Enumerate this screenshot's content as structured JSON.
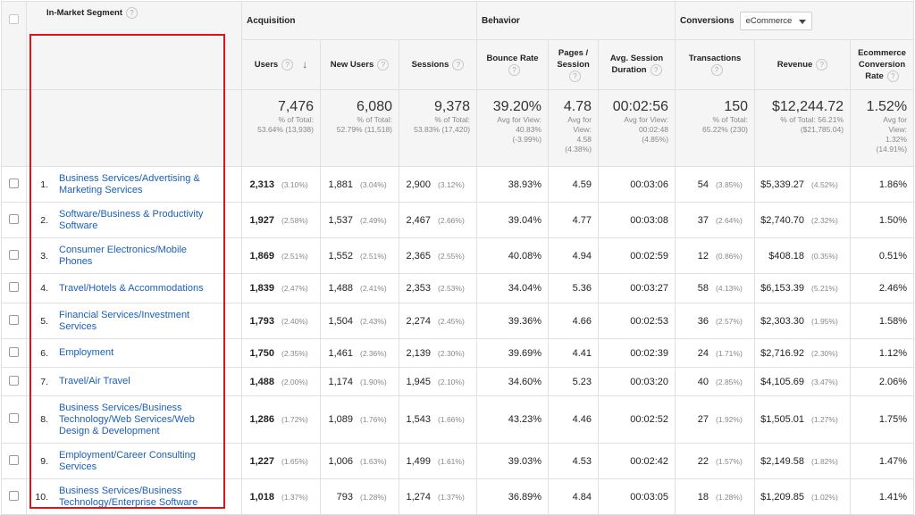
{
  "header": {
    "group_acquisition": "Acquisition",
    "group_behavior": "Behavior",
    "group_conversions": "Conversions",
    "conversions_dropdown": "eCommerce",
    "col_segment": "In-Market Segment",
    "col_users": "Users",
    "col_new_users": "New Users",
    "col_sessions": "Sessions",
    "col_bounce_rate_1": "Bounce Rate",
    "col_pages_session_1": "Pages /",
    "col_pages_session_2": "Session",
    "col_avg_session_1": "Avg. Session",
    "col_avg_session_2": "Duration",
    "col_transactions": "Transactions",
    "col_revenue": "Revenue",
    "col_ecr_1": "Ecommerce",
    "col_ecr_2": "Conversion",
    "col_ecr_3": "Rate",
    "help_glyph": "?",
    "sort_glyph": "↓"
  },
  "totals": {
    "users": {
      "value": "7,476",
      "l1": "% of Total:",
      "l2": "53.64% (13,938)"
    },
    "new_users": {
      "value": "6,080",
      "l1": "% of Total:",
      "l2": "52.79% (11,518)"
    },
    "sessions": {
      "value": "9,378",
      "l1": "% of Total:",
      "l2": "53.83% (17,420)"
    },
    "bounce_rate": {
      "value": "39.20%",
      "l1": "Avg for View:",
      "l2": "40.83%",
      "l3": "(-3.99%)"
    },
    "pages_session": {
      "value": "4.78",
      "l1": "Avg for",
      "l2": "View:",
      "l3": "4.58",
      "l4": "(4.38%)"
    },
    "avg_duration": {
      "value": "00:02:56",
      "l1": "Avg for View:",
      "l2": "00:02:48",
      "l3": "(4.85%)"
    },
    "transactions": {
      "value": "150",
      "l1": "% of Total:",
      "l2": "65.22% (230)"
    },
    "revenue": {
      "value": "$12,244.72",
      "l1": "% of Total: 56.21%",
      "l2": "($21,785.04)"
    },
    "ecr": {
      "value": "1.52%",
      "l1": "Avg for",
      "l2": "View:",
      "l3": "1.32%",
      "l4": "(14.91%)"
    }
  },
  "rows": [
    {
      "num": "1.",
      "seg": "Business Services/Advertising & Marketing Services",
      "users": "2,313",
      "users_pct": "(3.10%)",
      "new_users": "1,881",
      "new_users_pct": "(3.04%)",
      "sessions": "2,900",
      "sessions_pct": "(3.12%)",
      "bounce": "38.93%",
      "pages": "4.59",
      "duration": "00:03:06",
      "trans": "54",
      "trans_pct": "(3.85%)",
      "revenue": "$5,339.27",
      "revenue_pct": "(4.52%)",
      "ecr": "1.86%"
    },
    {
      "num": "2.",
      "seg": "Software/Business & Productivity Software",
      "users": "1,927",
      "users_pct": "(2.58%)",
      "new_users": "1,537",
      "new_users_pct": "(2.49%)",
      "sessions": "2,467",
      "sessions_pct": "(2.66%)",
      "bounce": "39.04%",
      "pages": "4.77",
      "duration": "00:03:08",
      "trans": "37",
      "trans_pct": "(2.64%)",
      "revenue": "$2,740.70",
      "revenue_pct": "(2.32%)",
      "ecr": "1.50%"
    },
    {
      "num": "3.",
      "seg": "Consumer Electronics/Mobile Phones",
      "users": "1,869",
      "users_pct": "(2.51%)",
      "new_users": "1,552",
      "new_users_pct": "(2.51%)",
      "sessions": "2,365",
      "sessions_pct": "(2.55%)",
      "bounce": "40.08%",
      "pages": "4.94",
      "duration": "00:02:59",
      "trans": "12",
      "trans_pct": "(0.86%)",
      "revenue": "$408.18",
      "revenue_pct": "(0.35%)",
      "ecr": "0.51%"
    },
    {
      "num": "4.",
      "seg": "Travel/Hotels & Accommodations",
      "users": "1,839",
      "users_pct": "(2.47%)",
      "new_users": "1,488",
      "new_users_pct": "(2.41%)",
      "sessions": "2,353",
      "sessions_pct": "(2.53%)",
      "bounce": "34.04%",
      "pages": "5.36",
      "duration": "00:03:27",
      "trans": "58",
      "trans_pct": "(4.13%)",
      "revenue": "$6,153.39",
      "revenue_pct": "(5.21%)",
      "ecr": "2.46%"
    },
    {
      "num": "5.",
      "seg": "Financial Services/Investment Services",
      "users": "1,793",
      "users_pct": "(2.40%)",
      "new_users": "1,504",
      "new_users_pct": "(2.43%)",
      "sessions": "2,274",
      "sessions_pct": "(2.45%)",
      "bounce": "39.36%",
      "pages": "4.66",
      "duration": "00:02:53",
      "trans": "36",
      "trans_pct": "(2.57%)",
      "revenue": "$2,303.30",
      "revenue_pct": "(1.95%)",
      "ecr": "1.58%"
    },
    {
      "num": "6.",
      "seg": "Employment",
      "users": "1,750",
      "users_pct": "(2.35%)",
      "new_users": "1,461",
      "new_users_pct": "(2.36%)",
      "sessions": "2,139",
      "sessions_pct": "(2.30%)",
      "bounce": "39.69%",
      "pages": "4.41",
      "duration": "00:02:39",
      "trans": "24",
      "trans_pct": "(1.71%)",
      "revenue": "$2,716.92",
      "revenue_pct": "(2.30%)",
      "ecr": "1.12%"
    },
    {
      "num": "7.",
      "seg": "Travel/Air Travel",
      "users": "1,488",
      "users_pct": "(2.00%)",
      "new_users": "1,174",
      "new_users_pct": "(1.90%)",
      "sessions": "1,945",
      "sessions_pct": "(2.10%)",
      "bounce": "34.60%",
      "pages": "5.23",
      "duration": "00:03:20",
      "trans": "40",
      "trans_pct": "(2.85%)",
      "revenue": "$4,105.69",
      "revenue_pct": "(3.47%)",
      "ecr": "2.06%"
    },
    {
      "num": "8.",
      "seg": "Business Services/Business Technology/Web Services/Web Design & Development",
      "users": "1,286",
      "users_pct": "(1.72%)",
      "new_users": "1,089",
      "new_users_pct": "(1.76%)",
      "sessions": "1,543",
      "sessions_pct": "(1.66%)",
      "bounce": "43.23%",
      "pages": "4.46",
      "duration": "00:02:52",
      "trans": "27",
      "trans_pct": "(1.92%)",
      "revenue": "$1,505.01",
      "revenue_pct": "(1.27%)",
      "ecr": "1.75%"
    },
    {
      "num": "9.",
      "seg": "Employment/Career Consulting Services",
      "users": "1,227",
      "users_pct": "(1.65%)",
      "new_users": "1,006",
      "new_users_pct": "(1.63%)",
      "sessions": "1,499",
      "sessions_pct": "(1.61%)",
      "bounce": "39.03%",
      "pages": "4.53",
      "duration": "00:02:42",
      "trans": "22",
      "trans_pct": "(1.57%)",
      "revenue": "$2,149.58",
      "revenue_pct": "(1.82%)",
      "ecr": "1.47%"
    },
    {
      "num": "10.",
      "seg": "Business Services/Business Technology/Enterprise Software",
      "users": "1,018",
      "users_pct": "(1.37%)",
      "new_users": "793",
      "new_users_pct": "(1.28%)",
      "sessions": "1,274",
      "sessions_pct": "(1.37%)",
      "bounce": "36.89%",
      "pages": "4.84",
      "duration": "00:03:05",
      "trans": "18",
      "trans_pct": "(1.28%)",
      "revenue": "$1,209.85",
      "revenue_pct": "(1.02%)",
      "ecr": "1.41%"
    }
  ]
}
